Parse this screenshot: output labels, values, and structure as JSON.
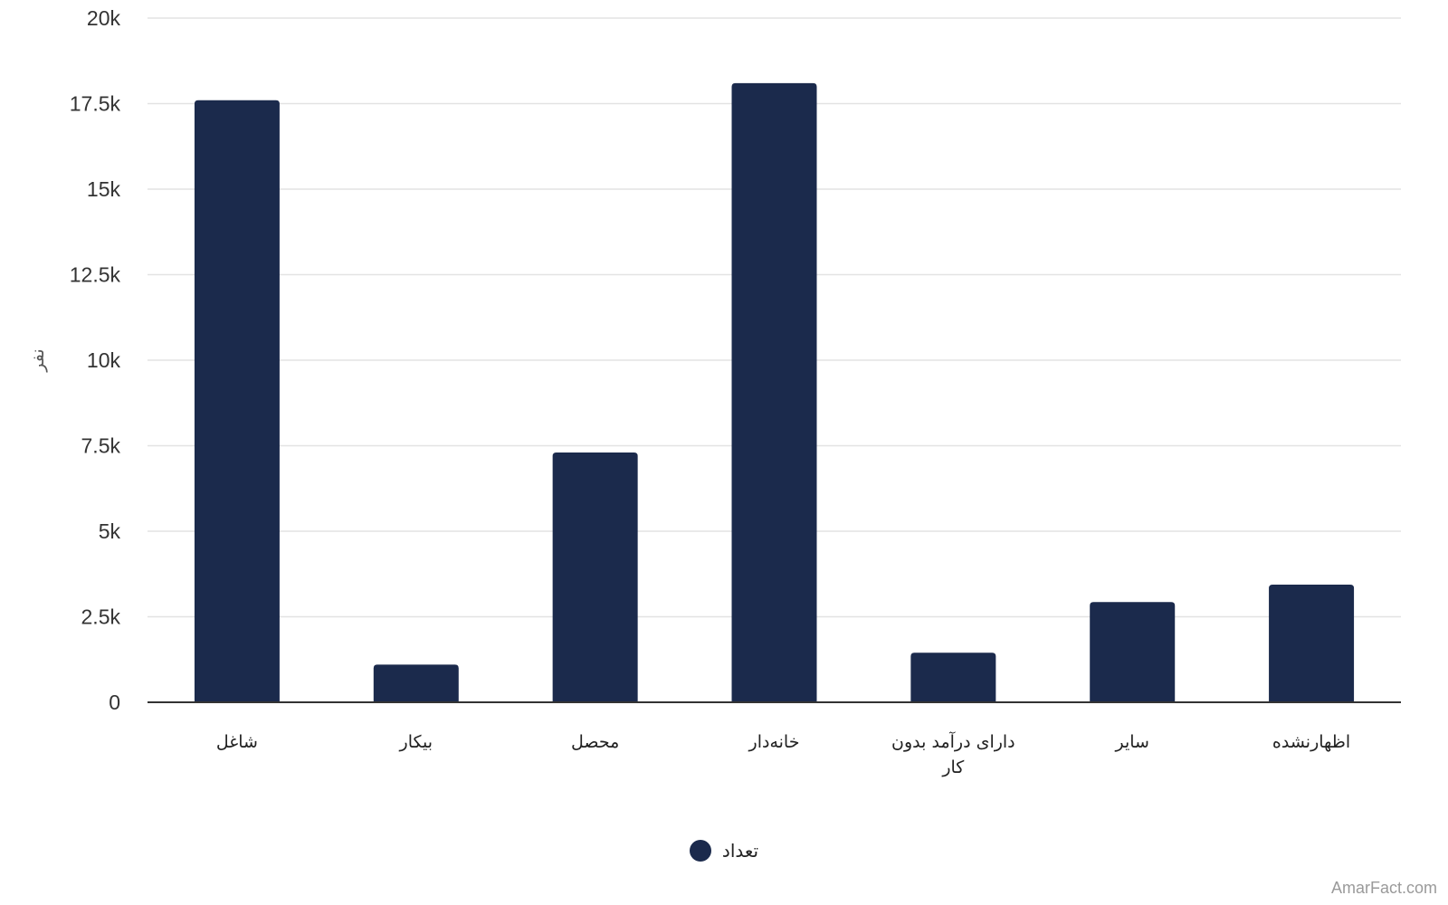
{
  "chart_data": {
    "type": "bar",
    "y_axis_title": "نفر",
    "categories": [
      "شاغل",
      "بیکار",
      "محصل",
      "خانه‌دار",
      "دارای درآمد بدون کار",
      "سایر",
      "اظهارنشده"
    ],
    "series": [
      {
        "name": "تعداد",
        "values": [
          17600,
          1100,
          7300,
          18100,
          1450,
          2930,
          3440
        ]
      }
    ],
    "ylim": [
      0,
      20000
    ],
    "yticks": [
      0,
      2500,
      5000,
      7500,
      10000,
      12500,
      15000,
      17500,
      20000
    ],
    "ytick_labels": [
      "0",
      "2.5k",
      "5k",
      "7.5k",
      "10k",
      "12.5k",
      "15k",
      "17.5k",
      "20k"
    ],
    "grid": true,
    "legend_position": "bottom-center",
    "colors": {
      "bar": "#1b2a4c",
      "grid": "#e3e3e3",
      "axis": "#333333"
    }
  },
  "legend": {
    "label": "تعداد"
  },
  "watermark": "AmarFact.com"
}
